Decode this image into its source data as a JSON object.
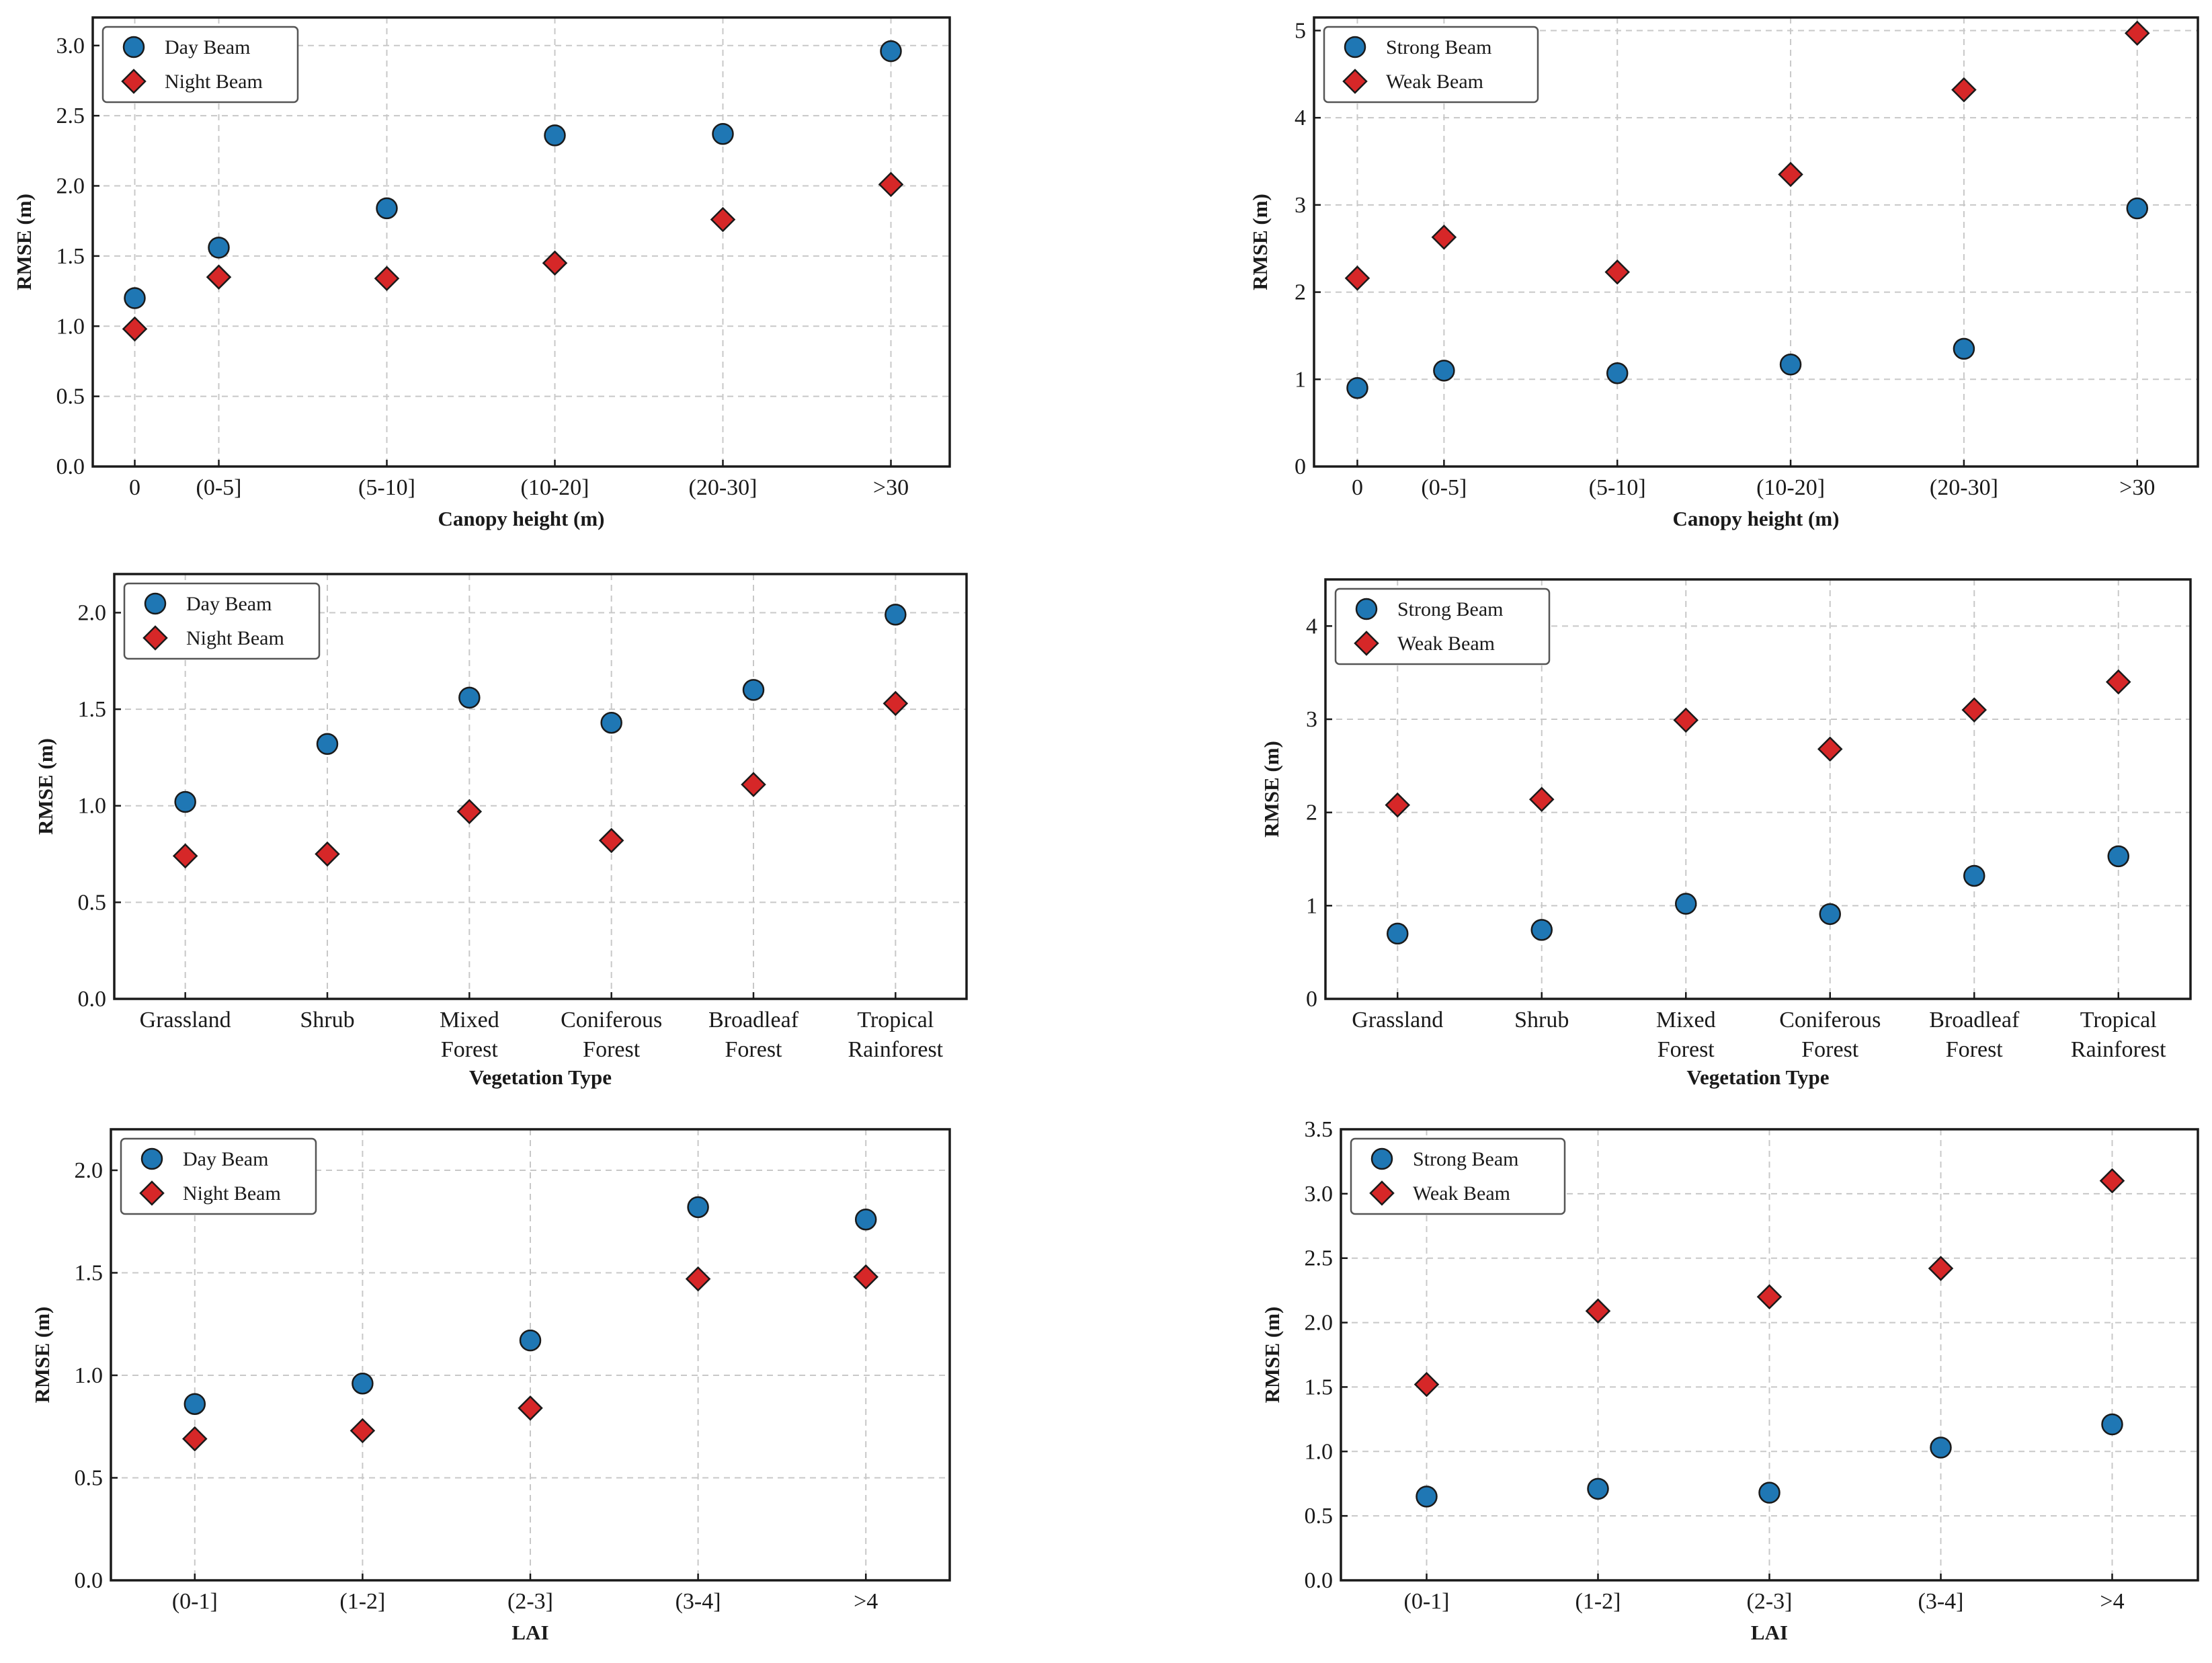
{
  "colors": {
    "series_circle": "#1f77b4",
    "series_diamond": "#d62728"
  },
  "chart_data": [
    {
      "type": "scatter",
      "title": "",
      "xlabel": "Canopy height (m)",
      "ylabel": "RMSE (m)",
      "categories": [
        "0",
        "(0-5]",
        "(5-10]",
        "(10-20]",
        "(20-30]",
        ">30"
      ],
      "category_positions": [
        0,
        0.5,
        1.5,
        2.5,
        3.5,
        4.5
      ],
      "xlim": [
        -0.25,
        4.85
      ],
      "ylim": [
        0,
        3.2
      ],
      "yticks": [
        0.0,
        0.5,
        1.0,
        1.5,
        2.0,
        2.5,
        3.0
      ],
      "ytick_labels": [
        "0.0",
        "0.5",
        "1.0",
        "1.5",
        "2.0",
        "2.5",
        "3.0"
      ],
      "grid": true,
      "legend_position": "top-left",
      "series": [
        {
          "name": "Day Beam",
          "marker": "circle",
          "values": [
            1.2,
            1.56,
            1.84,
            2.36,
            2.37,
            2.96
          ]
        },
        {
          "name": "Night Beam",
          "marker": "diamond",
          "values": [
            0.98,
            1.35,
            1.34,
            1.45,
            1.76,
            2.01
          ]
        }
      ]
    },
    {
      "type": "scatter",
      "title": "",
      "xlabel": "Canopy height (m)",
      "ylabel": "RMSE (m)",
      "categories": [
        "0",
        "(0-5]",
        "(5-10]",
        "(10-20]",
        "(20-30]",
        ">30"
      ],
      "category_positions": [
        0,
        0.5,
        1.5,
        2.5,
        3.5,
        4.5
      ],
      "xlim": [
        -0.25,
        4.85
      ],
      "ylim": [
        0,
        5.15
      ],
      "yticks": [
        0,
        1,
        2,
        3,
        4,
        5
      ],
      "ytick_labels": [
        "0",
        "1",
        "2",
        "3",
        "4",
        "5"
      ],
      "grid": true,
      "legend_position": "top-left",
      "series": [
        {
          "name": "Strong Beam",
          "marker": "circle",
          "values": [
            0.9,
            1.1,
            1.07,
            1.17,
            1.35,
            2.96
          ]
        },
        {
          "name": "Weak Beam",
          "marker": "diamond",
          "values": [
            2.16,
            2.63,
            2.23,
            3.35,
            4.32,
            4.97
          ]
        }
      ]
    },
    {
      "type": "scatter",
      "title": "",
      "xlabel": "Vegetation Type",
      "ylabel": "RMSE (m)",
      "categories": [
        "Grassland",
        "Shrub",
        "Mixed Forest",
        "Coniferous Forest",
        "Broadleaf Forest",
        "Tropical Rainforest"
      ],
      "category_positions": [
        0,
        1,
        2,
        3,
        4,
        5
      ],
      "xlim": [
        -0.5,
        5.5
      ],
      "ylim": [
        0,
        2.2
      ],
      "yticks": [
        0.0,
        0.5,
        1.0,
        1.5,
        2.0
      ],
      "ytick_labels": [
        "0.0",
        "0.5",
        "1.0",
        "1.5",
        "2.0"
      ],
      "grid": true,
      "legend_position": "top-left",
      "series": [
        {
          "name": "Day Beam",
          "marker": "circle",
          "values": [
            1.02,
            1.32,
            1.56,
            1.43,
            1.6,
            1.99
          ]
        },
        {
          "name": "Night Beam",
          "marker": "diamond",
          "values": [
            0.74,
            0.75,
            0.97,
            0.82,
            1.11,
            1.53
          ]
        }
      ]
    },
    {
      "type": "scatter",
      "title": "",
      "xlabel": "Vegetation Type",
      "ylabel": "RMSE (m)",
      "categories": [
        "Grassland",
        "Shrub",
        "Mixed Forest",
        "Coniferous Forest",
        "Broadleaf Forest",
        "Tropical Rainforest"
      ],
      "category_positions": [
        0,
        1,
        2,
        3,
        4,
        5
      ],
      "xlim": [
        -0.5,
        5.5
      ],
      "ylim": [
        0,
        4.5
      ],
      "yticks": [
        0,
        1,
        2,
        3,
        4
      ],
      "ytick_labels": [
        "0",
        "1",
        "2",
        "3",
        "4"
      ],
      "grid": true,
      "legend_position": "top-left",
      "series": [
        {
          "name": "Strong Beam",
          "marker": "circle",
          "values": [
            0.7,
            0.74,
            1.02,
            0.91,
            1.32,
            1.53
          ]
        },
        {
          "name": "Weak Beam",
          "marker": "diamond",
          "values": [
            2.08,
            2.14,
            2.99,
            2.68,
            3.1,
            3.4
          ]
        }
      ]
    },
    {
      "type": "scatter",
      "title": "",
      "xlabel": "LAI",
      "ylabel": "RMSE (m)",
      "categories": [
        "(0-1]",
        "(1-2]",
        "(2-3]",
        "(3-4]",
        ">4"
      ],
      "category_positions": [
        0,
        1,
        2,
        3,
        4
      ],
      "xlim": [
        -0.5,
        4.5
      ],
      "ylim": [
        0,
        2.2
      ],
      "yticks": [
        0.0,
        0.5,
        1.0,
        1.5,
        2.0
      ],
      "ytick_labels": [
        "0.0",
        "0.5",
        "1.0",
        "1.5",
        "2.0"
      ],
      "grid": true,
      "legend_position": "top-left",
      "series": [
        {
          "name": "Day Beam",
          "marker": "circle",
          "values": [
            0.86,
            0.96,
            1.17,
            1.82,
            1.76
          ]
        },
        {
          "name": "Night Beam",
          "marker": "diamond",
          "values": [
            0.69,
            0.73,
            0.84,
            1.47,
            1.48
          ]
        }
      ]
    },
    {
      "type": "scatter",
      "title": "",
      "xlabel": "LAI",
      "ylabel": "RMSE (m)",
      "categories": [
        "(0-1]",
        "(1-2]",
        "(2-3]",
        "(3-4]",
        ">4"
      ],
      "category_positions": [
        0,
        1,
        2,
        3,
        4
      ],
      "xlim": [
        -0.5,
        4.5
      ],
      "ylim": [
        0,
        3.5
      ],
      "yticks": [
        0.0,
        0.5,
        1.0,
        1.5,
        2.0,
        2.5,
        3.0,
        3.5
      ],
      "ytick_labels": [
        "0.0",
        "0.5",
        "1.0",
        "1.5",
        "2.0",
        "2.5",
        "3.0",
        "3.5"
      ],
      "grid": true,
      "legend_position": "top-left",
      "series": [
        {
          "name": "Strong Beam",
          "marker": "circle",
          "values": [
            0.65,
            0.71,
            0.68,
            1.03,
            1.21
          ]
        },
        {
          "name": "Weak Beam",
          "marker": "diamond",
          "values": [
            1.52,
            2.09,
            2.2,
            2.42,
            3.1
          ]
        }
      ]
    }
  ]
}
